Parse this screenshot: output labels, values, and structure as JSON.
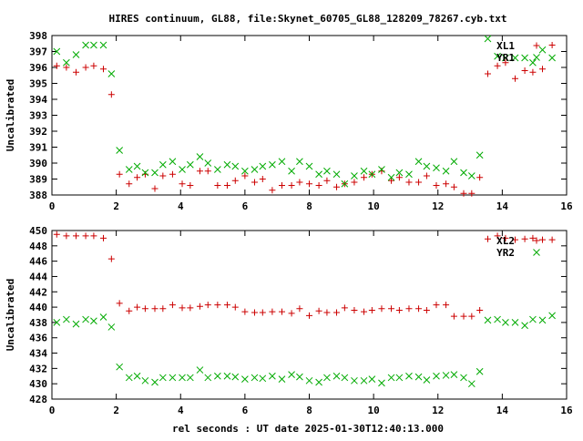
{
  "title": "HIRES continuum, GL88, file:Skynet_60705_GL88_128209_78267.cyb.txt",
  "xlabel": "rel seconds : UT date 2025-01-30T12:40:13.000",
  "colors": {
    "red": "#cc0000",
    "green": "#00aa00",
    "axis": "#000000"
  },
  "chart_data": [
    {
      "type": "scatter",
      "ylabel": "Uncalibrated",
      "xlim": [
        0,
        16
      ],
      "ylim": [
        388,
        398
      ],
      "xticks": [
        0,
        2,
        4,
        6,
        8,
        10,
        12,
        14,
        16
      ],
      "yticks": [
        388,
        389,
        390,
        391,
        392,
        393,
        394,
        395,
        396,
        397,
        398
      ],
      "legend_position": "top-right",
      "series": [
        {
          "name": "XL1",
          "marker": "plus",
          "color": "#cc0000",
          "points": [
            [
              0.15,
              396.1
            ],
            [
              0.45,
              396.0
            ],
            [
              0.75,
              395.7
            ],
            [
              1.05,
              396.0
            ],
            [
              1.3,
              396.1
            ],
            [
              1.6,
              395.9
            ],
            [
              1.85,
              394.3
            ],
            [
              2.1,
              389.3
            ],
            [
              2.4,
              388.7
            ],
            [
              2.65,
              389.1
            ],
            [
              2.9,
              389.3
            ],
            [
              3.2,
              388.4
            ],
            [
              3.45,
              389.2
            ],
            [
              3.75,
              389.3
            ],
            [
              4.05,
              388.7
            ],
            [
              4.3,
              388.6
            ],
            [
              4.6,
              389.5
            ],
            [
              4.85,
              389.5
            ],
            [
              5.15,
              388.6
            ],
            [
              5.45,
              388.6
            ],
            [
              5.7,
              388.9
            ],
            [
              6.0,
              389.2
            ],
            [
              6.3,
              388.8
            ],
            [
              6.55,
              389.0
            ],
            [
              6.85,
              388.3
            ],
            [
              7.15,
              388.6
            ],
            [
              7.45,
              388.6
            ],
            [
              7.7,
              388.8
            ],
            [
              8.0,
              388.7
            ],
            [
              8.3,
              388.6
            ],
            [
              8.55,
              388.9
            ],
            [
              8.85,
              388.5
            ],
            [
              9.1,
              388.7
            ],
            [
              9.4,
              388.8
            ],
            [
              9.7,
              389.1
            ],
            [
              9.95,
              389.3
            ],
            [
              10.25,
              389.5
            ],
            [
              10.55,
              388.9
            ],
            [
              10.8,
              389.1
            ],
            [
              11.1,
              388.8
            ],
            [
              11.4,
              388.8
            ],
            [
              11.65,
              389.2
            ],
            [
              11.95,
              388.6
            ],
            [
              12.25,
              388.7
            ],
            [
              12.5,
              388.5
            ],
            [
              12.8,
              388.1
            ],
            [
              13.05,
              388.1
            ],
            [
              13.3,
              389.1
            ],
            [
              13.55,
              395.6
            ],
            [
              13.85,
              396.1
            ],
            [
              14.1,
              396.3
            ],
            [
              14.4,
              395.3
            ],
            [
              14.7,
              395.8
            ],
            [
              14.95,
              395.7
            ],
            [
              15.25,
              395.9
            ],
            [
              15.55,
              397.4
            ]
          ]
        },
        {
          "name": "YR1",
          "marker": "cross",
          "color": "#00aa00",
          "points": [
            [
              0.15,
              397.0
            ],
            [
              0.45,
              396.3
            ],
            [
              0.75,
              396.8
            ],
            [
              1.05,
              397.4
            ],
            [
              1.3,
              397.4
            ],
            [
              1.6,
              397.4
            ],
            [
              1.85,
              395.6
            ],
            [
              2.1,
              390.8
            ],
            [
              2.4,
              389.6
            ],
            [
              2.65,
              389.8
            ],
            [
              2.9,
              389.4
            ],
            [
              3.2,
              389.4
            ],
            [
              3.45,
              389.9
            ],
            [
              3.75,
              390.1
            ],
            [
              4.05,
              389.6
            ],
            [
              4.3,
              389.9
            ],
            [
              4.6,
              390.4
            ],
            [
              4.85,
              390.0
            ],
            [
              5.15,
              389.6
            ],
            [
              5.45,
              389.9
            ],
            [
              5.7,
              389.8
            ],
            [
              6.0,
              389.5
            ],
            [
              6.3,
              389.6
            ],
            [
              6.55,
              389.8
            ],
            [
              6.85,
              389.9
            ],
            [
              7.15,
              390.1
            ],
            [
              7.45,
              389.5
            ],
            [
              7.7,
              390.1
            ],
            [
              8.0,
              389.8
            ],
            [
              8.3,
              389.3
            ],
            [
              8.55,
              389.5
            ],
            [
              8.85,
              389.3
            ],
            [
              9.1,
              388.7
            ],
            [
              9.4,
              389.2
            ],
            [
              9.7,
              389.5
            ],
            [
              9.95,
              389.3
            ],
            [
              10.25,
              389.6
            ],
            [
              10.55,
              389.1
            ],
            [
              10.8,
              389.4
            ],
            [
              11.1,
              389.3
            ],
            [
              11.4,
              390.1
            ],
            [
              11.65,
              389.8
            ],
            [
              11.95,
              389.7
            ],
            [
              12.25,
              389.5
            ],
            [
              12.5,
              390.1
            ],
            [
              12.8,
              389.4
            ],
            [
              13.05,
              389.2
            ],
            [
              13.3,
              390.5
            ],
            [
              13.55,
              397.8
            ],
            [
              13.85,
              396.7
            ],
            [
              14.1,
              396.6
            ],
            [
              14.4,
              396.6
            ],
            [
              14.7,
              396.6
            ],
            [
              14.95,
              396.3
            ],
            [
              15.25,
              397.1
            ],
            [
              15.55,
              396.6
            ]
          ]
        }
      ]
    },
    {
      "type": "scatter",
      "ylabel": "Uncalibrated",
      "xlim": [
        0,
        16
      ],
      "ylim": [
        428,
        450
      ],
      "xticks": [
        0,
        2,
        4,
        6,
        8,
        10,
        12,
        14,
        16
      ],
      "yticks": [
        428,
        430,
        432,
        434,
        436,
        438,
        440,
        442,
        444,
        446,
        448,
        450
      ],
      "legend_position": "top-right",
      "series": [
        {
          "name": "XL2",
          "marker": "plus",
          "color": "#cc0000",
          "points": [
            [
              0.15,
              449.5
            ],
            [
              0.45,
              449.3
            ],
            [
              0.75,
              449.3
            ],
            [
              1.05,
              449.3
            ],
            [
              1.3,
              449.3
            ],
            [
              1.6,
              449.0
            ],
            [
              1.85,
              446.3
            ],
            [
              2.1,
              440.5
            ],
            [
              2.4,
              439.5
            ],
            [
              2.65,
              440.0
            ],
            [
              2.9,
              439.8
            ],
            [
              3.2,
              439.8
            ],
            [
              3.45,
              439.8
            ],
            [
              3.75,
              440.3
            ],
            [
              4.05,
              439.9
            ],
            [
              4.3,
              439.9
            ],
            [
              4.6,
              440.1
            ],
            [
              4.85,
              440.3
            ],
            [
              5.15,
              440.3
            ],
            [
              5.45,
              440.3
            ],
            [
              5.7,
              440.0
            ],
            [
              6.0,
              439.4
            ],
            [
              6.3,
              439.3
            ],
            [
              6.55,
              439.3
            ],
            [
              6.85,
              439.4
            ],
            [
              7.15,
              439.4
            ],
            [
              7.45,
              439.2
            ],
            [
              7.7,
              439.8
            ],
            [
              8.0,
              438.9
            ],
            [
              8.3,
              439.5
            ],
            [
              8.55,
              439.3
            ],
            [
              8.85,
              439.3
            ],
            [
              9.1,
              439.9
            ],
            [
              9.4,
              439.6
            ],
            [
              9.7,
              439.4
            ],
            [
              9.95,
              439.6
            ],
            [
              10.25,
              439.8
            ],
            [
              10.55,
              439.8
            ],
            [
              10.8,
              439.6
            ],
            [
              11.1,
              439.8
            ],
            [
              11.4,
              439.8
            ],
            [
              11.65,
              439.6
            ],
            [
              11.95,
              440.3
            ],
            [
              12.25,
              440.3
            ],
            [
              12.5,
              438.8
            ],
            [
              12.8,
              438.8
            ],
            [
              13.05,
              438.8
            ],
            [
              13.3,
              439.6
            ],
            [
              13.55,
              448.9
            ],
            [
              13.85,
              449.3
            ],
            [
              14.1,
              449.0
            ],
            [
              14.4,
              448.8
            ],
            [
              14.7,
              448.9
            ],
            [
              14.95,
              449.0
            ],
            [
              15.25,
              448.8
            ],
            [
              15.55,
              448.8
            ]
          ]
        },
        {
          "name": "YR2",
          "marker": "cross",
          "color": "#00aa00",
          "points": [
            [
              0.15,
              438.0
            ],
            [
              0.45,
              438.4
            ],
            [
              0.75,
              437.8
            ],
            [
              1.05,
              438.4
            ],
            [
              1.3,
              438.2
            ],
            [
              1.6,
              438.7
            ],
            [
              1.85,
              437.4
            ],
            [
              2.1,
              432.2
            ],
            [
              2.4,
              430.8
            ],
            [
              2.65,
              431.0
            ],
            [
              2.9,
              430.4
            ],
            [
              3.2,
              430.2
            ],
            [
              3.45,
              430.8
            ],
            [
              3.75,
              430.8
            ],
            [
              4.05,
              430.8
            ],
            [
              4.3,
              430.8
            ],
            [
              4.6,
              431.8
            ],
            [
              4.85,
              430.8
            ],
            [
              5.15,
              431.0
            ],
            [
              5.45,
              431.0
            ],
            [
              5.7,
              430.9
            ],
            [
              6.0,
              430.6
            ],
            [
              6.3,
              430.8
            ],
            [
              6.55,
              430.7
            ],
            [
              6.85,
              431.0
            ],
            [
              7.15,
              430.6
            ],
            [
              7.45,
              431.2
            ],
            [
              7.7,
              430.9
            ],
            [
              8.0,
              430.4
            ],
            [
              8.3,
              430.2
            ],
            [
              8.55,
              430.8
            ],
            [
              8.85,
              431.0
            ],
            [
              9.1,
              430.8
            ],
            [
              9.4,
              430.4
            ],
            [
              9.7,
              430.4
            ],
            [
              9.95,
              430.6
            ],
            [
              10.25,
              430.1
            ],
            [
              10.55,
              430.8
            ],
            [
              10.8,
              430.8
            ],
            [
              11.1,
              431.0
            ],
            [
              11.4,
              430.9
            ],
            [
              11.65,
              430.5
            ],
            [
              11.95,
              431.0
            ],
            [
              12.25,
              431.1
            ],
            [
              12.5,
              431.2
            ],
            [
              12.8,
              430.8
            ],
            [
              13.05,
              430.0
            ],
            [
              13.3,
              431.6
            ],
            [
              13.55,
              438.3
            ],
            [
              13.85,
              438.4
            ],
            [
              14.1,
              438.0
            ],
            [
              14.4,
              438.0
            ],
            [
              14.7,
              437.6
            ],
            [
              14.95,
              438.4
            ],
            [
              15.25,
              438.3
            ],
            [
              15.55,
              438.9
            ]
          ]
        }
      ]
    }
  ]
}
